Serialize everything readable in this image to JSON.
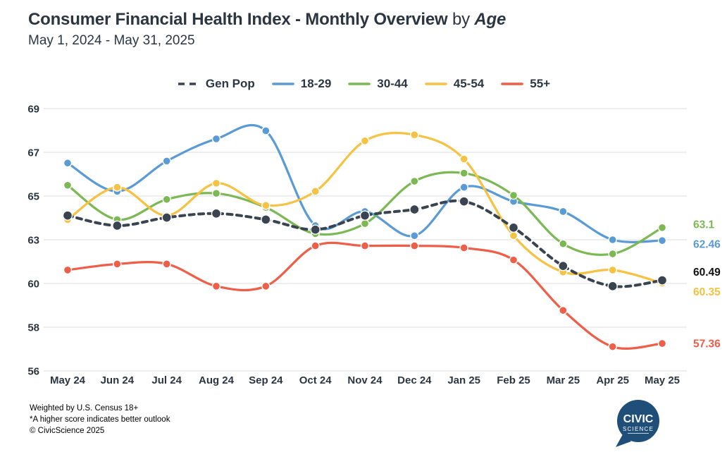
{
  "title": {
    "main": "Consumer Financial Health Index - Monthly Overview",
    "by": "by",
    "emphasis": "Age",
    "subtitle": "May 1, 2024 - May 31, 2025"
  },
  "chart_data": {
    "type": "line",
    "title": "Consumer Financial Health Index - Monthly Overview by Age",
    "categories": [
      "May 24",
      "Jun 24",
      "Jul 24",
      "Aug 24",
      "Sep 24",
      "Oct 24",
      "Nov 24",
      "Dec 24",
      "Jan 25",
      "Feb 25",
      "Mar 25",
      "Apr 25",
      "May 25"
    ],
    "series": [
      {
        "name": "Gen Pop",
        "color": "#3a4450",
        "dashed": true,
        "end_label": "60.49",
        "end_label_color": "#111111",
        "values": [
          63.7,
          63.2,
          63.6,
          63.8,
          63.5,
          63.0,
          63.7,
          64.0,
          64.4,
          63.1,
          61.2,
          60.2,
          60.49
        ]
      },
      {
        "name": "18-29",
        "color": "#5b9bd5",
        "dashed": false,
        "end_label": "62.46",
        "end_label_color": "#5b9bd5",
        "values": [
          66.3,
          64.9,
          66.4,
          67.5,
          67.9,
          63.2,
          63.9,
          62.7,
          65.1,
          64.4,
          63.9,
          62.5,
          62.46
        ]
      },
      {
        "name": "30-44",
        "color": "#7cb854",
        "dashed": false,
        "end_label": "63.1",
        "end_label_color": "#7cb854",
        "values": [
          65.2,
          63.5,
          64.5,
          64.8,
          64.1,
          62.8,
          63.3,
          65.4,
          65.8,
          64.7,
          62.3,
          61.8,
          63.1
        ]
      },
      {
        "name": "45-54",
        "color": "#f5c243",
        "dashed": false,
        "end_label": "60.35",
        "end_label_color": "#f5c243",
        "values": [
          63.5,
          65.1,
          63.7,
          65.3,
          64.2,
          64.9,
          67.4,
          67.7,
          66.5,
          62.7,
          60.9,
          61.0,
          60.35
        ]
      },
      {
        "name": "55+",
        "color": "#ee5f4a",
        "dashed": false,
        "end_label": "57.36",
        "end_label_color": "#ee5f4a",
        "values": [
          61.0,
          61.3,
          61.3,
          60.2,
          60.2,
          62.2,
          62.2,
          62.2,
          62.1,
          61.5,
          59.0,
          57.2,
          57.36
        ]
      }
    ],
    "legend_order": [
      "Gen Pop",
      "18-29",
      "30-44",
      "45-54",
      "55+"
    ],
    "legend_position": "top",
    "grid": true,
    "y_ticks": [
      "69",
      "67",
      "65",
      "63",
      "60",
      "58",
      "56"
    ],
    "ylim": [
      56,
      69
    ],
    "xlabel": "",
    "ylabel": ""
  },
  "footer": {
    "line1": "Weighted by U.S. Census 18+",
    "line2": "*A higher score indicates better outlook",
    "line3": "© CivicScience 2025"
  },
  "logo": {
    "top": "CIVIC",
    "bottom": "SCIENCE",
    "color": "#1f4e79"
  }
}
